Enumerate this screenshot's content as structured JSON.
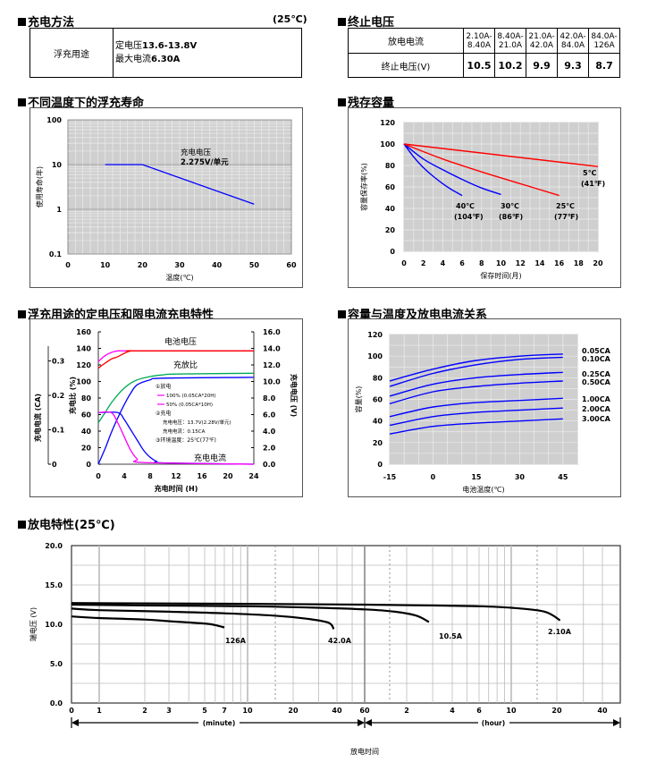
{
  "charge_method": {
    "title": "充电方法",
    "temp": "(25℃)",
    "row_label": "浮充用途",
    "line1_prefix": "定电压",
    "line1_value": "13.6-13.8V",
    "line2_prefix": "最大电流",
    "line2_value": "6.30A"
  },
  "cutoff_voltage": {
    "title": "终止电压",
    "row1_label": "放电电流",
    "row2_label": "终止电压(V)",
    "currents": [
      [
        "2.10A-",
        "8.40A"
      ],
      [
        "8.40A-",
        "21.0A"
      ],
      [
        "21.0A-",
        "42.0A"
      ],
      [
        "42.0A-",
        "84.0A"
      ],
      [
        "84.0A-",
        "126A"
      ]
    ],
    "voltages": [
      "10.5",
      "10.2",
      "9.9",
      "9.3",
      "8.7"
    ]
  },
  "float_life": {
    "title": "不同温度下的浮充寿命",
    "annotation_line1": "充电电压",
    "annotation_line2": "2.275V/单元",
    "chart_data": {
      "type": "line",
      "xlabel": "温度(℃)",
      "ylabel": "使用寿命(年)",
      "y_scale": "log",
      "xlim": [
        0,
        60
      ],
      "ylim": [
        0.1,
        100
      ],
      "x_ticks": [
        "0",
        "10",
        "20",
        "30",
        "40",
        "50",
        "60"
      ],
      "y_ticks": [
        "100",
        "10",
        "1",
        "0.1"
      ],
      "series": [
        {
          "x": [
            10,
            20,
            50
          ],
          "y": [
            10,
            10,
            1.3
          ]
        }
      ]
    }
  },
  "residual_capacity": {
    "title": "残存容量",
    "chart_data": {
      "type": "line",
      "xlabel": "保存时间(月)",
      "ylabel": "容量保存率(%)",
      "xlim": [
        0,
        20
      ],
      "ylim": [
        0,
        120
      ],
      "x_ticks": [
        "0",
        "2",
        "4",
        "6",
        "8",
        "10",
        "12",
        "14",
        "16",
        "18",
        "20"
      ],
      "y_ticks": [
        "0",
        "20",
        "40",
        "60",
        "80",
        "100",
        "120"
      ],
      "series": [
        {
          "name": "40℃",
          "name2": "(104℉)",
          "color": "#0000ff",
          "x": [
            0,
            1,
            2,
            3,
            4,
            5,
            6
          ],
          "y": [
            100,
            88,
            78,
            70,
            63,
            57,
            52
          ]
        },
        {
          "name": "30℃",
          "name2": "(86℉)",
          "color": "#0000ff",
          "x": [
            0,
            2,
            4,
            6,
            8,
            10
          ],
          "y": [
            100,
            86,
            76,
            67,
            59,
            53
          ]
        },
        {
          "name": "25℃",
          "name2": "(77℉)",
          "color": "#ff0000",
          "x": [
            0,
            4,
            8,
            12,
            16
          ],
          "y": [
            100,
            86,
            74,
            63,
            52
          ]
        },
        {
          "name": "5℃",
          "name2": "(41℉)",
          "color": "#ff0000",
          "x": [
            0,
            20
          ],
          "y": [
            100,
            79
          ]
        }
      ]
    }
  },
  "charge_char": {
    "title": "浮充用途的定电压和限电流充电特性",
    "label_voltage": "电池电压",
    "label_ratio": "充放比",
    "label_current": "充电电流",
    "legend": [
      "①放电",
      "100% (0.05CA*20H)",
      "50% (0.05CA*10H)",
      "②充电",
      "充电电压：13.7V(2.28V/单元)",
      "充电电流：0.15CA",
      "③环境温度：25℃(77℉)"
    ],
    "chart_data": {
      "type": "line",
      "xlabel": "充电时间 (H)",
      "ylabel_left": "充电比 (%)",
      "ylabel_left2": "充电电流 (CA)",
      "ylabel_right": "充电电压 (V)",
      "xlim": [
        0,
        24
      ],
      "ylim_ratio": [
        0,
        160
      ],
      "ylim_voltage": [
        0,
        16
      ],
      "ylim_current": [
        0,
        0.3
      ],
      "x_ticks": [
        "0",
        "4",
        "8",
        "12",
        "16",
        "20",
        "24"
      ],
      "ratio_ticks": [
        "0",
        "20",
        "40",
        "60",
        "80",
        "100",
        "120",
        "140",
        "160"
      ],
      "voltage_ticks": [
        "0.0",
        "2.0",
        "4.0",
        "6.0",
        "8.0",
        "10.0",
        "12.0",
        "14.0",
        "16.0"
      ],
      "current_ticks": [
        "0",
        "0.1",
        "0.2",
        "0.3"
      ],
      "series": [
        {
          "name": "voltage-100",
          "color": "#ff00ff",
          "axis": "voltage",
          "x": [
            0,
            1,
            2,
            3,
            4,
            5,
            6,
            24
          ],
          "y": [
            12.4,
            13.1,
            13.5,
            13.7,
            13.7,
            13.7,
            13.7,
            13.7
          ]
        },
        {
          "name": "voltage-50",
          "color": "#ff0000",
          "axis": "voltage",
          "x": [
            0,
            1,
            2,
            3,
            4,
            5,
            6,
            24
          ],
          "y": [
            11.6,
            12.2,
            12.7,
            13.0,
            13.4,
            13.7,
            13.7,
            13.7
          ]
        },
        {
          "name": "ratio-100",
          "color": "#0000ff",
          "axis": "ratio",
          "x": [
            0,
            1,
            2,
            3,
            4,
            5,
            6,
            8,
            10,
            24
          ],
          "y": [
            0,
            18,
            38,
            56,
            72,
            86,
            96,
            102,
            104,
            105
          ]
        },
        {
          "name": "ratio-50",
          "color": "#00aa55",
          "axis": "ratio",
          "x": [
            0,
            1,
            2,
            3,
            4,
            5,
            6,
            8,
            10,
            12,
            24
          ],
          "y": [
            50,
            62,
            74,
            84,
            92,
            98,
            102,
            106,
            108,
            109,
            110
          ]
        },
        {
          "name": "current-100",
          "color": "#0000ff",
          "axis": "current",
          "x": [
            0,
            3,
            4,
            5,
            6,
            7,
            8,
            9,
            10,
            24
          ],
          "y": [
            0.15,
            0.15,
            0.13,
            0.1,
            0.07,
            0.04,
            0.02,
            0.008,
            0.004,
            0
          ]
        },
        {
          "name": "current-50",
          "color": "#ff00ff",
          "axis": "current",
          "x": [
            0,
            2,
            3,
            4,
            5,
            6,
            7,
            24
          ],
          "y": [
            0.15,
            0.15,
            0.12,
            0.08,
            0.04,
            0.015,
            0.005,
            0
          ]
        }
      ]
    }
  },
  "cap_temp": {
    "title": "容量与温度及放电电流关系",
    "chart_data": {
      "type": "line",
      "xlabel": "电池温度(℃)",
      "ylabel": "容量(%)",
      "xlim": [
        -15,
        50
      ],
      "ylim": [
        0,
        120
      ],
      "x_ticks": [
        -15,
        0,
        15,
        30,
        45
      ],
      "x_tick_labels": [
        "-15",
        "0",
        "15",
        "30",
        "45"
      ],
      "y_ticks": [
        "0",
        "20",
        "40",
        "60",
        "80",
        "100",
        "120"
      ],
      "series": [
        {
          "name": "0.05CA",
          "x": [
            -15,
            0,
            15,
            30,
            45
          ],
          "y": [
            77,
            88,
            96,
            100,
            102
          ]
        },
        {
          "name": "0.10CA",
          "x": [
            -15,
            0,
            15,
            30,
            45
          ],
          "y": [
            72,
            84,
            92,
            97,
            99
          ]
        },
        {
          "name": "0.25CA",
          "x": [
            -15,
            0,
            15,
            30,
            45
          ],
          "y": [
            63,
            74,
            80,
            83,
            85
          ]
        },
        {
          "name": "0.50CA",
          "x": [
            -15,
            0,
            15,
            30,
            45
          ],
          "y": [
            56,
            67,
            72,
            75,
            77
          ]
        },
        {
          "name": "1.00CA",
          "x": [
            -15,
            0,
            15,
            30,
            45
          ],
          "y": [
            44,
            53,
            57,
            59,
            61
          ]
        },
        {
          "name": "2.00CA",
          "x": [
            -15,
            0,
            15,
            30,
            45
          ],
          "y": [
            36,
            44,
            48,
            50,
            52
          ]
        },
        {
          "name": "3.00CA",
          "x": [
            -15,
            0,
            15,
            30,
            45
          ],
          "y": [
            28,
            35,
            38,
            40,
            42
          ]
        }
      ]
    }
  },
  "discharge": {
    "title": "放电特性(25℃)",
    "unit_minute": "(minute)",
    "unit_hour": "(hour)",
    "chart_data": {
      "type": "line",
      "xlabel": "放电时间",
      "ylabel": "端电压 (V)",
      "ylim": [
        0,
        20
      ],
      "y_ticks": [
        "0.0",
        "5.0",
        "10.0",
        "15.0",
        "20.0"
      ],
      "x_ticks_minute": [
        "0",
        "1",
        "2",
        "3",
        "5",
        "7",
        "10",
        "20",
        "40",
        "60"
      ],
      "x_ticks_hour": [
        "2",
        "4",
        "6",
        "10",
        "20",
        "40"
      ],
      "series": [
        {
          "name": "126A",
          "x_minutes": [
            0,
            1,
            2,
            3,
            5,
            6,
            7
          ],
          "y": [
            11.0,
            10.8,
            10.6,
            10.4,
            10.1,
            9.9,
            9.6
          ]
        },
        {
          "name": "42.0A",
          "x_minutes": [
            0,
            1,
            3,
            7,
            15,
            25,
            35,
            38
          ],
          "y": [
            12.0,
            11.8,
            11.6,
            11.4,
            11.1,
            10.7,
            10.2,
            9.4
          ]
        },
        {
          "name": "10.5A",
          "x_minutes": [
            0,
            2,
            10,
            30,
            60,
            100,
            140,
            170
          ],
          "y": [
            12.5,
            12.4,
            12.3,
            12.1,
            11.9,
            11.6,
            11.1,
            10.3
          ]
        },
        {
          "name": "2.10A",
          "x_minutes": [
            0,
            10,
            60,
            180,
            360,
            600,
            1000,
            1260
          ],
          "y": [
            12.7,
            12.6,
            12.5,
            12.4,
            12.3,
            12.1,
            11.6,
            10.5
          ]
        }
      ]
    }
  }
}
